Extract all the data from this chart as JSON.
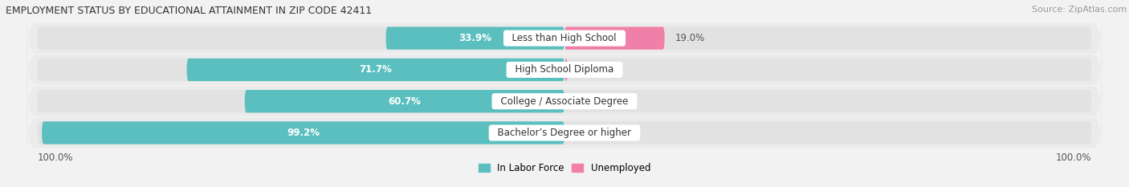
{
  "title": "EMPLOYMENT STATUS BY EDUCATIONAL ATTAINMENT IN ZIP CODE 42411",
  "source": "Source: ZipAtlas.com",
  "categories": [
    "Less than High School",
    "High School Diploma",
    "College / Associate Degree",
    "Bachelor’s Degree or higher"
  ],
  "labor_force": [
    33.9,
    71.7,
    60.7,
    99.2
  ],
  "unemployed": [
    19.0,
    0.6,
    0.0,
    0.0
  ],
  "labor_force_color": "#5BBFBF",
  "unemployed_color": "#F080A8",
  "bg_color": "#F2F2F2",
  "bar_bg_color": "#E2E2E2",
  "row_bg_color": "#EBEBEB",
  "x_min": -100,
  "x_max": 100,
  "left_label": "100.0%",
  "right_label": "100.0%",
  "legend_labor": "In Labor Force",
  "legend_unemployed": "Unemployed",
  "title_fontsize": 9,
  "source_fontsize": 8,
  "bar_label_fontsize": 8.5,
  "category_fontsize": 8.5
}
